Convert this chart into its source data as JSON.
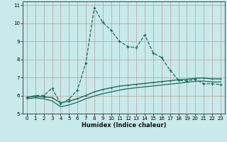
{
  "xlabel": "Humidex (Indice chaleur)",
  "bg_color": "#c8eaea",
  "line_color": "#1a6b5a",
  "grid_color": "#c0a8a8",
  "xlim": [
    -0.5,
    23.5
  ],
  "ylim": [
    5,
    11.2
  ],
  "yticks": [
    5,
    6,
    7,
    8,
    9,
    10,
    11
  ],
  "xticks": [
    0,
    1,
    2,
    3,
    4,
    5,
    6,
    7,
    8,
    9,
    10,
    11,
    12,
    13,
    14,
    15,
    16,
    17,
    18,
    19,
    20,
    21,
    22,
    23
  ],
  "series1_x": [
    0,
    1,
    2,
    3,
    4,
    5,
    6,
    7,
    8,
    9,
    10,
    11,
    12,
    13,
    14,
    15,
    16,
    17,
    18,
    19,
    20,
    21,
    22,
    23
  ],
  "series1_y": [
    5.9,
    6.0,
    6.0,
    6.4,
    5.55,
    5.8,
    6.3,
    7.8,
    10.85,
    10.05,
    9.6,
    9.0,
    8.7,
    8.65,
    9.35,
    8.35,
    8.1,
    7.4,
    6.85,
    6.8,
    6.9,
    6.65,
    6.65,
    6.6
  ],
  "series2_x": [
    0,
    1,
    2,
    3,
    4,
    5,
    6,
    7,
    8,
    9,
    10,
    11,
    12,
    13,
    14,
    15,
    16,
    17,
    18,
    19,
    20,
    21,
    22,
    23
  ],
  "series2_y": [
    5.9,
    5.95,
    5.92,
    5.88,
    5.6,
    5.68,
    5.83,
    6.0,
    6.2,
    6.33,
    6.43,
    6.52,
    6.57,
    6.62,
    6.67,
    6.72,
    6.77,
    6.82,
    6.87,
    6.9,
    6.95,
    6.97,
    6.92,
    6.92
  ],
  "series3_x": [
    0,
    1,
    2,
    3,
    4,
    5,
    6,
    7,
    8,
    9,
    10,
    11,
    12,
    13,
    14,
    15,
    16,
    17,
    18,
    19,
    20,
    21,
    22,
    23
  ],
  "series3_y": [
    5.82,
    5.87,
    5.82,
    5.7,
    5.38,
    5.48,
    5.63,
    5.82,
    5.97,
    6.1,
    6.2,
    6.3,
    6.38,
    6.43,
    6.48,
    6.53,
    6.58,
    6.63,
    6.68,
    6.73,
    6.78,
    6.8,
    6.75,
    6.75
  ]
}
